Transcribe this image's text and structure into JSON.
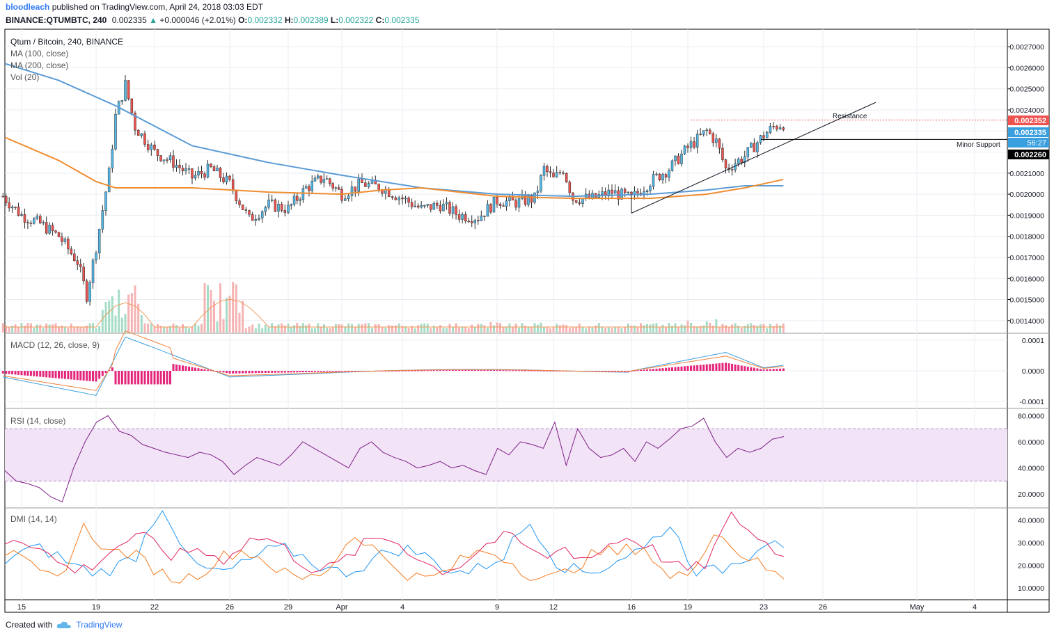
{
  "header": {
    "user": "bloodleach",
    "published": "published on TradingView.com, April 24, 2018 03:03 EDT",
    "symbol_line": "BINANCE:QTUMBTC, 240",
    "last": "0.002335",
    "change": "+0.000046 (+2.01%)",
    "o_label": "O:",
    "o": "0.002332",
    "h_label": "H:",
    "h": "0.002389",
    "l_label": "L:",
    "l": "0.002322",
    "c_label": "C:",
    "c": "0.002335"
  },
  "legend": {
    "title": "Qtum / Bitcoin, 240, BINANCE",
    "ma100": "MA (100, close)",
    "ma200": "MA (200, close)",
    "vol": "Vol (20)"
  },
  "annotations": {
    "resistance": "Resistance",
    "support": "Minor Support"
  },
  "price_tags": {
    "resistance": "0.002352",
    "last": "0.002335",
    "countdown": "56:27",
    "support": "0.002260"
  },
  "footer": {
    "created_with": "Created with",
    "brand": "TradingView"
  },
  "colors": {
    "up": "#26a69a",
    "down": "#ef5350",
    "ma100": "#5b9bd5",
    "ma200": "#ef8c2f",
    "macd": "#3a9fde",
    "signal": "#f0813a",
    "hist": "#e3267b",
    "rsi": "#7e1f86",
    "rsi_band": "#f2e3f7",
    "di_plus": "#2196f3",
    "di_minus": "#f57c1f",
    "adx": "#e0245e",
    "resistance_tag": "#ef5350",
    "last_tag": "#3a9fde",
    "support_tag": "#000000"
  },
  "chart_data": [
    {
      "type": "candlestick",
      "title": "Qtum / Bitcoin, 240, BINANCE",
      "x_ticks": [
        "15",
        "19",
        "22",
        "26",
        "29",
        "Apr",
        "4",
        "9",
        "12",
        "16",
        "19",
        "23",
        "26",
        "May",
        "4"
      ],
      "y_ticks": [
        0.0014,
        0.0015,
        0.0016,
        0.0017,
        0.0018,
        0.0019,
        0.002,
        0.0021,
        0.0022,
        0.0023,
        0.0024,
        0.0025,
        0.0026,
        0.0027
      ],
      "ylim": [
        0.00134,
        0.00275
      ],
      "ohlc_path": [
        [
          "Mar 14",
          0.00199
        ],
        [
          "Mar 15",
          0.0019
        ],
        [
          "Mar 16",
          0.00186
        ],
        [
          "Mar 17",
          0.0018
        ],
        [
          "Mar 18",
          0.00168
        ],
        [
          "Mar 18 12h",
          0.00152
        ],
        [
          "Mar 19",
          0.00175
        ],
        [
          "Mar 19 16h",
          0.0021
        ],
        [
          "Mar 20",
          0.00237
        ],
        [
          "Mar 20 12h",
          0.00252
        ],
        [
          "Mar 21",
          0.00232
        ],
        [
          "Mar 22",
          0.0022
        ],
        [
          "Mar 23",
          0.00215
        ],
        [
          "Mar 24",
          0.00208
        ],
        [
          "Mar 25",
          0.00212
        ],
        [
          "Mar 26",
          0.00205
        ],
        [
          "Mar 27",
          0.00188
        ],
        [
          "Mar 28",
          0.00195
        ],
        [
          "Mar 29",
          0.00193
        ],
        [
          "Mar 30",
          0.00203
        ],
        [
          "Mar 31",
          0.00208
        ],
        [
          "Apr 1",
          0.002
        ],
        [
          "Apr 2",
          0.00205
        ],
        [
          "Apr 3",
          0.00203
        ],
        [
          "Apr 4",
          0.00198
        ],
        [
          "Apr 5",
          0.00193
        ],
        [
          "Apr 6",
          0.00195
        ],
        [
          "Apr 7",
          0.0019
        ],
        [
          "Apr 8",
          0.00189
        ],
        [
          "Apr 9",
          0.00197
        ],
        [
          "Apr 10",
          0.00196
        ],
        [
          "Apr 11",
          0.00198
        ],
        [
          "Apr 11 12h",
          0.00212
        ],
        [
          "Apr 12",
          0.00207
        ],
        [
          "Apr 12 12h",
          0.00212
        ],
        [
          "Apr 13",
          0.00198
        ],
        [
          "Apr 14",
          0.00198
        ],
        [
          "Apr 15",
          0.00201
        ],
        [
          "Apr 16",
          0.00198
        ],
        [
          "Apr 17",
          0.00206
        ],
        [
          "Apr 18",
          0.00212
        ],
        [
          "Apr 19",
          0.00222
        ],
        [
          "Apr 20",
          0.0023
        ],
        [
          "Apr 20 12h",
          0.00225
        ],
        [
          "Apr 21",
          0.00212
        ],
        [
          "Apr 22",
          0.00218
        ],
        [
          "Apr 23",
          0.00228
        ],
        [
          "Apr 23 12h",
          0.00232
        ],
        [
          "Apr 24",
          0.002335
        ]
      ],
      "ma100": [
        [
          "Mar 14",
          0.00262
        ],
        [
          "Mar 17",
          0.00254
        ],
        [
          "Mar 20",
          0.00242
        ],
        [
          "Mar 24",
          0.00223
        ],
        [
          "Mar 28",
          0.00215
        ],
        [
          "Apr 1",
          0.00209
        ],
        [
          "Apr 5",
          0.00203
        ],
        [
          "Apr 9",
          0.002
        ],
        [
          "Apr 13",
          0.00199
        ],
        [
          "Apr 17",
          0.002
        ],
        [
          "Apr 20",
          0.00202
        ],
        [
          "Apr 22",
          0.00204
        ],
        [
          "Apr 24",
          0.00204
        ]
      ],
      "ma200": [
        [
          "Mar 14",
          0.00227
        ],
        [
          "Mar 17",
          0.00216
        ],
        [
          "Mar 19",
          0.00206
        ],
        [
          "Mar 20",
          0.00203
        ],
        [
          "Mar 24",
          0.00203
        ],
        [
          "Mar 28",
          0.00201
        ],
        [
          "Apr 1",
          0.002
        ],
        [
          "Apr 3",
          0.00202
        ],
        [
          "Apr 5",
          0.00203
        ],
        [
          "Apr 7",
          0.00201
        ],
        [
          "Apr 9",
          0.00199
        ],
        [
          "Apr 13",
          0.00198
        ],
        [
          "Apr 17",
          0.00198
        ],
        [
          "Apr 20",
          0.002
        ],
        [
          "Apr 22",
          0.00203
        ],
        [
          "Apr 24",
          0.00207
        ]
      ],
      "resistance": 0.002352,
      "support": 0.00226,
      "trendline": [
        [
          "Apr 16",
          0.00191
        ],
        [
          "Apr 26",
          0.00235
        ]
      ]
    },
    {
      "type": "bar",
      "title": "MACD (12, 26, close, 9)",
      "y_ticks": [
        "0.0001",
        "0.0000",
        "-0.0001"
      ],
      "ylim": [
        -0.0001,
        0.0001
      ]
    },
    {
      "type": "line",
      "title": "RSI (14, close)",
      "y_ticks": [
        "80.0000",
        "60.0000",
        "40.0000",
        "20.0000"
      ],
      "ylim": [
        10,
        85
      ],
      "band": [
        30,
        70
      ],
      "series": [
        {
          "values": [
            38,
            30,
            28,
            25,
            18,
            14,
            40,
            60,
            75,
            80,
            68,
            65,
            58,
            55,
            52,
            50,
            48,
            52,
            50,
            45,
            35,
            42,
            48,
            45,
            42,
            50,
            60,
            55,
            50,
            45,
            40,
            55,
            60,
            52,
            48,
            45,
            40,
            42,
            45,
            40,
            42,
            38,
            35,
            55,
            50,
            60,
            58,
            55,
            75,
            42,
            70,
            55,
            48,
            50,
            55,
            45,
            60,
            55,
            62,
            70,
            72,
            78,
            60,
            48,
            55,
            52,
            55,
            62,
            64
          ]
        }
      ]
    },
    {
      "type": "line",
      "title": "DMI (14, 14)",
      "y_ticks": [
        "40.0000",
        "30.0000",
        "20.0000",
        "10.0000"
      ],
      "ylim": [
        5,
        45
      ]
    }
  ]
}
